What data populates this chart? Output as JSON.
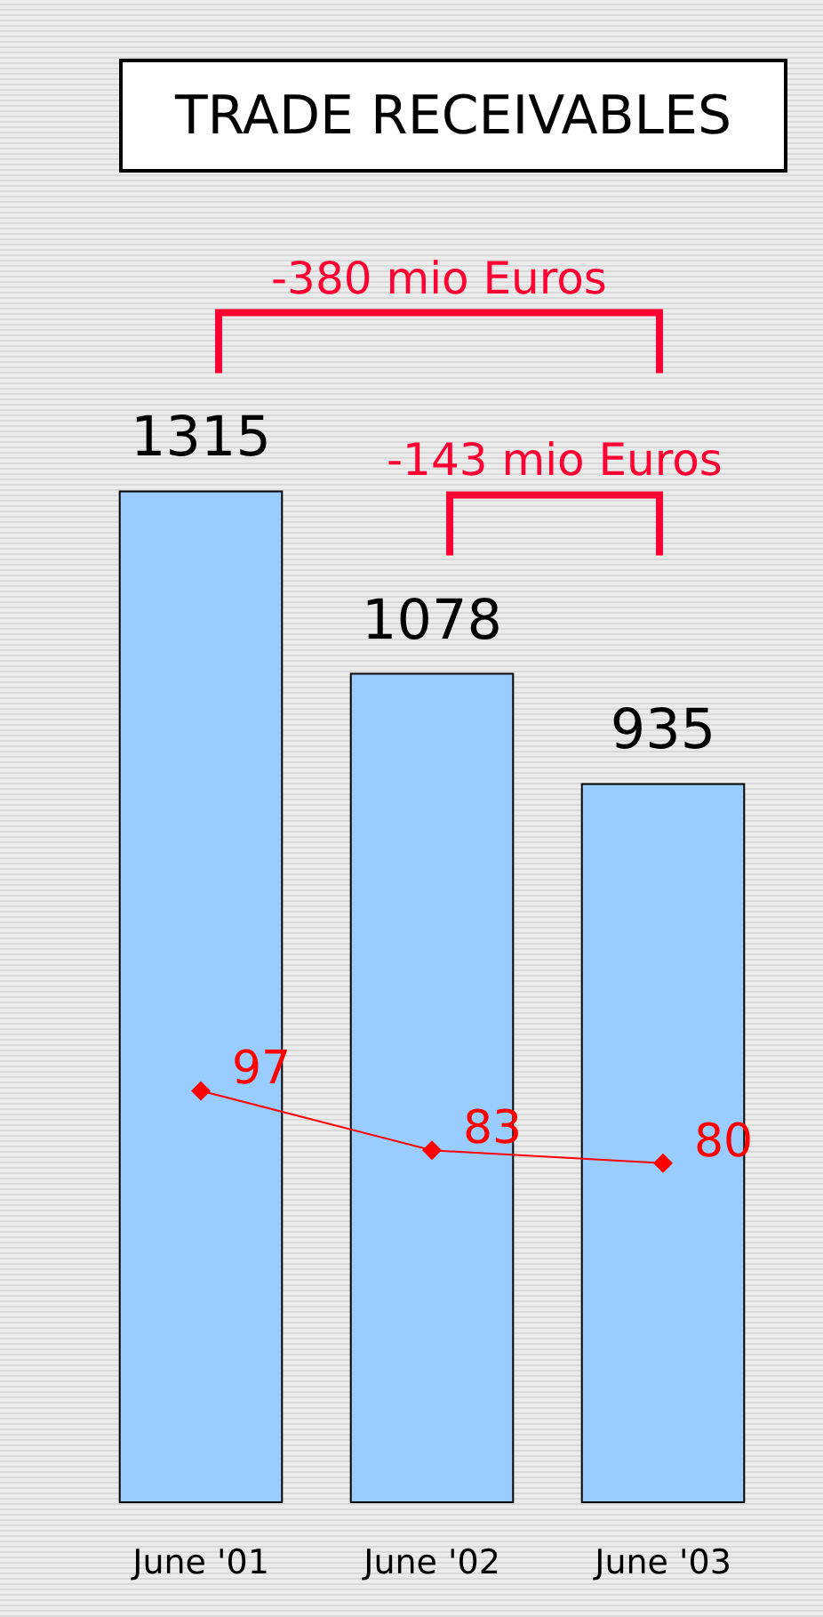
{
  "chart_data": {
    "type": "bar",
    "title": "TRADE RECEIVABLES",
    "categories": [
      "June '01",
      "June '02",
      "June '03"
    ],
    "series": [
      {
        "color": "#99ccff",
        "values": [
          1315,
          1078,
          935
        ],
        "data_labels": true
      },
      {
        "type": "line",
        "axis": "y2",
        "color": "#ff0000",
        "values": [
          97,
          83,
          80
        ],
        "data_labels": true,
        "marker": "diamond"
      }
    ],
    "tick_labels": "x",
    "annotations": [
      "-380 mio Euros",
      "-143  mio Euros"
    ]
  }
}
